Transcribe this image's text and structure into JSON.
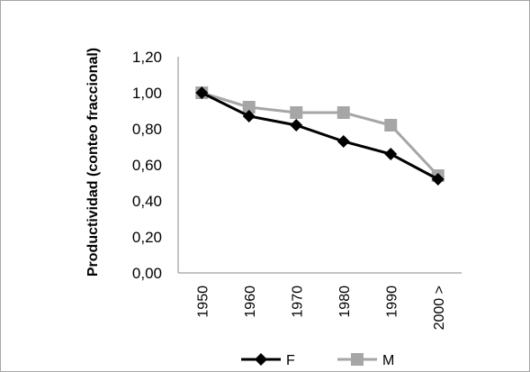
{
  "chart_data": {
    "type": "line",
    "title": "",
    "xlabel": "",
    "ylabel": "Productividad (conteo fraccional)",
    "categories": [
      "1950",
      "1960",
      "1970",
      "1980",
      "1990",
      "2000 >"
    ],
    "yticks": [
      "0,00",
      "0,20",
      "0,40",
      "0,60",
      "0,80",
      "1,00",
      "1,20"
    ],
    "ylim": [
      0,
      1.2
    ],
    "grid": false,
    "legend_position": "bottom",
    "series": [
      {
        "name": "F",
        "values": [
          1.0,
          0.87,
          0.82,
          0.73,
          0.66,
          0.52
        ],
        "color": "#000000",
        "marker": "diamond"
      },
      {
        "name": "M",
        "values": [
          1.0,
          0.92,
          0.89,
          0.89,
          0.82,
          0.54
        ],
        "color": "#a6a6a6",
        "marker": "square"
      }
    ]
  }
}
